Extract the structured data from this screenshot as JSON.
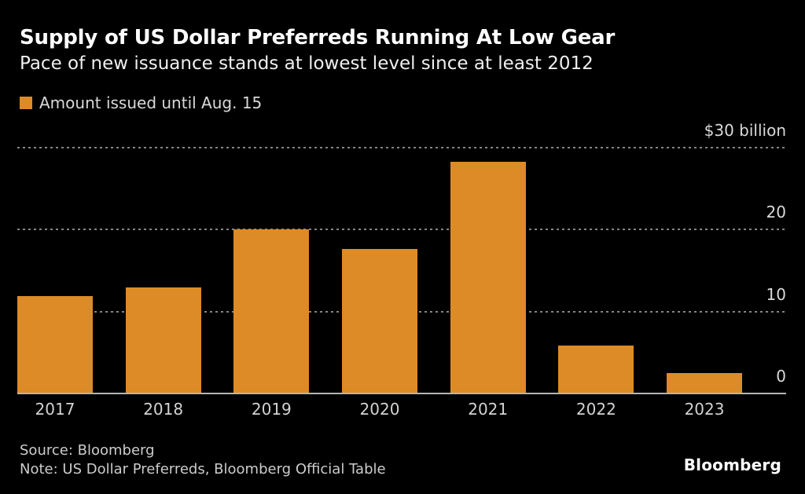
{
  "header": {
    "title": "Supply of US Dollar Preferreds Running At Low Gear",
    "subtitle": "Pace of new issuance stands at lowest level since at least 2012"
  },
  "legend": {
    "label": "Amount issued until Aug. 15",
    "swatch_color": "#DC8B26"
  },
  "chart_data": {
    "type": "bar",
    "title": "Supply of US Dollar Preferreds Running At Low Gear",
    "subtitle": "Pace of new issuance stands at lowest level since at least 2012",
    "series_name": "Amount issued until Aug. 15",
    "categories": [
      "2017",
      "2018",
      "2019",
      "2020",
      "2021",
      "2022",
      "2023"
    ],
    "values": [
      11.9,
      12.9,
      20.0,
      17.6,
      28.3,
      5.8,
      2.5
    ],
    "unit": "$ billion",
    "ylim": [
      0,
      30
    ],
    "yticks": [
      {
        "value": 30,
        "label": "$30 billion"
      },
      {
        "value": 20,
        "label": "20"
      },
      {
        "value": 10,
        "label": "10"
      },
      {
        "value": 0,
        "label": "0"
      }
    ],
    "grid": "horizontal-dotted",
    "legend_position": "top-left",
    "ytick_position": "right",
    "bar_color": "#DC8B26",
    "background_color": "#000000"
  },
  "footer": {
    "source": "Source: Bloomberg",
    "note": "Note: US Dollar Preferreds, Bloomberg Official Table",
    "logo": "Bloomberg"
  }
}
